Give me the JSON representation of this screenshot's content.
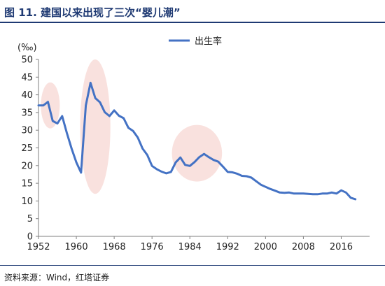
{
  "header": {
    "title": "图 11. 建国以来出现了三次“婴儿潮”"
  },
  "footer": {
    "source": "资料来源：Wind，红塔证券"
  },
  "chart_data": {
    "type": "line",
    "unit_label": "(‰)",
    "ylim": [
      0,
      50
    ],
    "y_ticks": [
      0,
      5,
      10,
      15,
      20,
      25,
      30,
      35,
      40,
      45,
      50
    ],
    "xlim": [
      1952,
      2022
    ],
    "x_ticks": [
      1952,
      1960,
      1968,
      1976,
      1984,
      1992,
      2000,
      2008,
      2016
    ],
    "grid": false,
    "legend_position": "top-center",
    "colors": {
      "line": "#4472c4",
      "highlight": "#f4c9c3",
      "axis": "#7f7f7f",
      "title": "#1f3a73"
    },
    "series": [
      {
        "name": "出生率",
        "x": [
          1952,
          1953,
          1954,
          1955,
          1956,
          1957,
          1958,
          1959,
          1960,
          1961,
          1962,
          1963,
          1964,
          1965,
          1966,
          1967,
          1968,
          1969,
          1970,
          1971,
          1972,
          1973,
          1974,
          1975,
          1976,
          1977,
          1978,
          1979,
          1980,
          1981,
          1982,
          1983,
          1984,
          1985,
          1986,
          1987,
          1988,
          1989,
          1990,
          1991,
          1992,
          1993,
          1994,
          1995,
          1996,
          1997,
          1998,
          1999,
          2000,
          2001,
          2002,
          2003,
          2004,
          2005,
          2006,
          2007,
          2008,
          2009,
          2010,
          2011,
          2012,
          2013,
          2014,
          2015,
          2016,
          2017,
          2018,
          2019
        ],
        "values": [
          37.0,
          37.0,
          38.0,
          32.6,
          31.9,
          34.0,
          29.2,
          24.8,
          20.9,
          18.0,
          37.0,
          43.4,
          39.1,
          37.9,
          35.1,
          34.0,
          35.6,
          34.1,
          33.4,
          30.7,
          29.8,
          27.9,
          24.8,
          23.0,
          19.9,
          19.0,
          18.3,
          17.8,
          18.2,
          20.9,
          22.3,
          20.2,
          19.9,
          21.0,
          22.4,
          23.3,
          22.4,
          21.6,
          21.1,
          19.7,
          18.2,
          18.1,
          17.7,
          17.1,
          17.0,
          16.6,
          15.6,
          14.6,
          14.0,
          13.4,
          12.9,
          12.4,
          12.3,
          12.4,
          12.1,
          12.1,
          12.1,
          12.0,
          11.9,
          11.9,
          12.1,
          12.1,
          12.4,
          12.1,
          13.0,
          12.4,
          10.9,
          10.5
        ]
      }
    ],
    "highlights": [
      {
        "x_range": [
          1952.5,
          1956.5
        ],
        "y_range": [
          30.5,
          43.5
        ]
      },
      {
        "x_range": [
          1960.8,
          1967.2
        ],
        "y_range": [
          12.0,
          50.0
        ]
      },
      {
        "x_range": [
          1980.2,
          1990.8
        ],
        "y_range": [
          15.5,
          31.5
        ]
      }
    ]
  }
}
